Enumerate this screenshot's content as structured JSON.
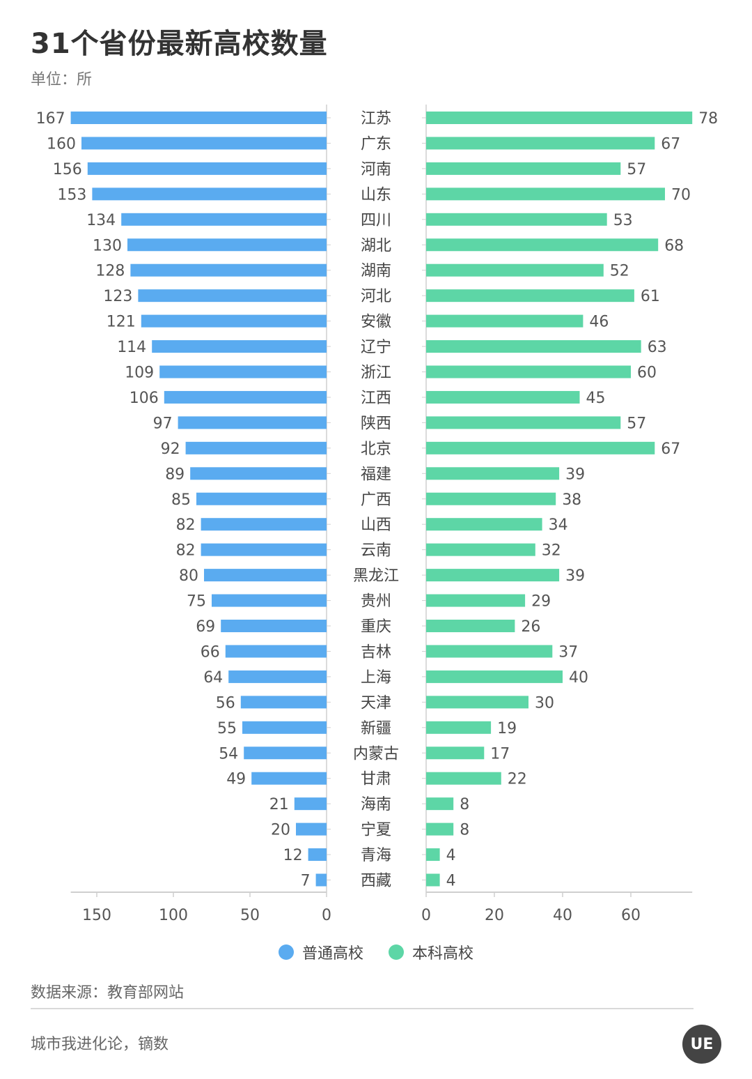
{
  "title": "31个省份最新高校数量",
  "unit": "单位：所",
  "legend": [
    {
      "label": "普通高校",
      "color": "#5aabf0"
    },
    {
      "label": "本科高校",
      "color": "#5dd6a6"
    }
  ],
  "source": "数据来源：教育部网站",
  "credit": "城市我进化论，镝数",
  "logo_text": "UE",
  "chart_data": {
    "type": "bar",
    "categories": [
      "江苏",
      "广东",
      "河南",
      "山东",
      "四川",
      "湖北",
      "湖南",
      "河北",
      "安徽",
      "辽宁",
      "浙江",
      "江西",
      "陕西",
      "北京",
      "福建",
      "广西",
      "山西",
      "云南",
      "黑龙江",
      "贵州",
      "重庆",
      "吉林",
      "上海",
      "天津",
      "新疆",
      "内蒙古",
      "甘肃",
      "海南",
      "宁夏",
      "青海",
      "西藏"
    ],
    "series": [
      {
        "name": "普通高校",
        "color": "#5aabf0",
        "values": [
          167,
          160,
          156,
          153,
          134,
          130,
          128,
          123,
          121,
          114,
          109,
          106,
          97,
          92,
          89,
          85,
          82,
          82,
          80,
          75,
          69,
          66,
          64,
          56,
          55,
          54,
          49,
          21,
          20,
          12,
          7
        ]
      },
      {
        "name": "本科高校",
        "color": "#5dd6a6",
        "values": [
          78,
          67,
          57,
          70,
          53,
          68,
          52,
          61,
          46,
          63,
          60,
          45,
          57,
          67,
          39,
          38,
          34,
          32,
          39,
          29,
          26,
          37,
          40,
          30,
          19,
          17,
          22,
          8,
          8,
          4,
          4
        ]
      }
    ],
    "left_axis": {
      "ticks": [
        150,
        100,
        50,
        0
      ],
      "max": 167
    },
    "right_axis": {
      "ticks": [
        0,
        20,
        40,
        60
      ],
      "max": 78
    }
  }
}
